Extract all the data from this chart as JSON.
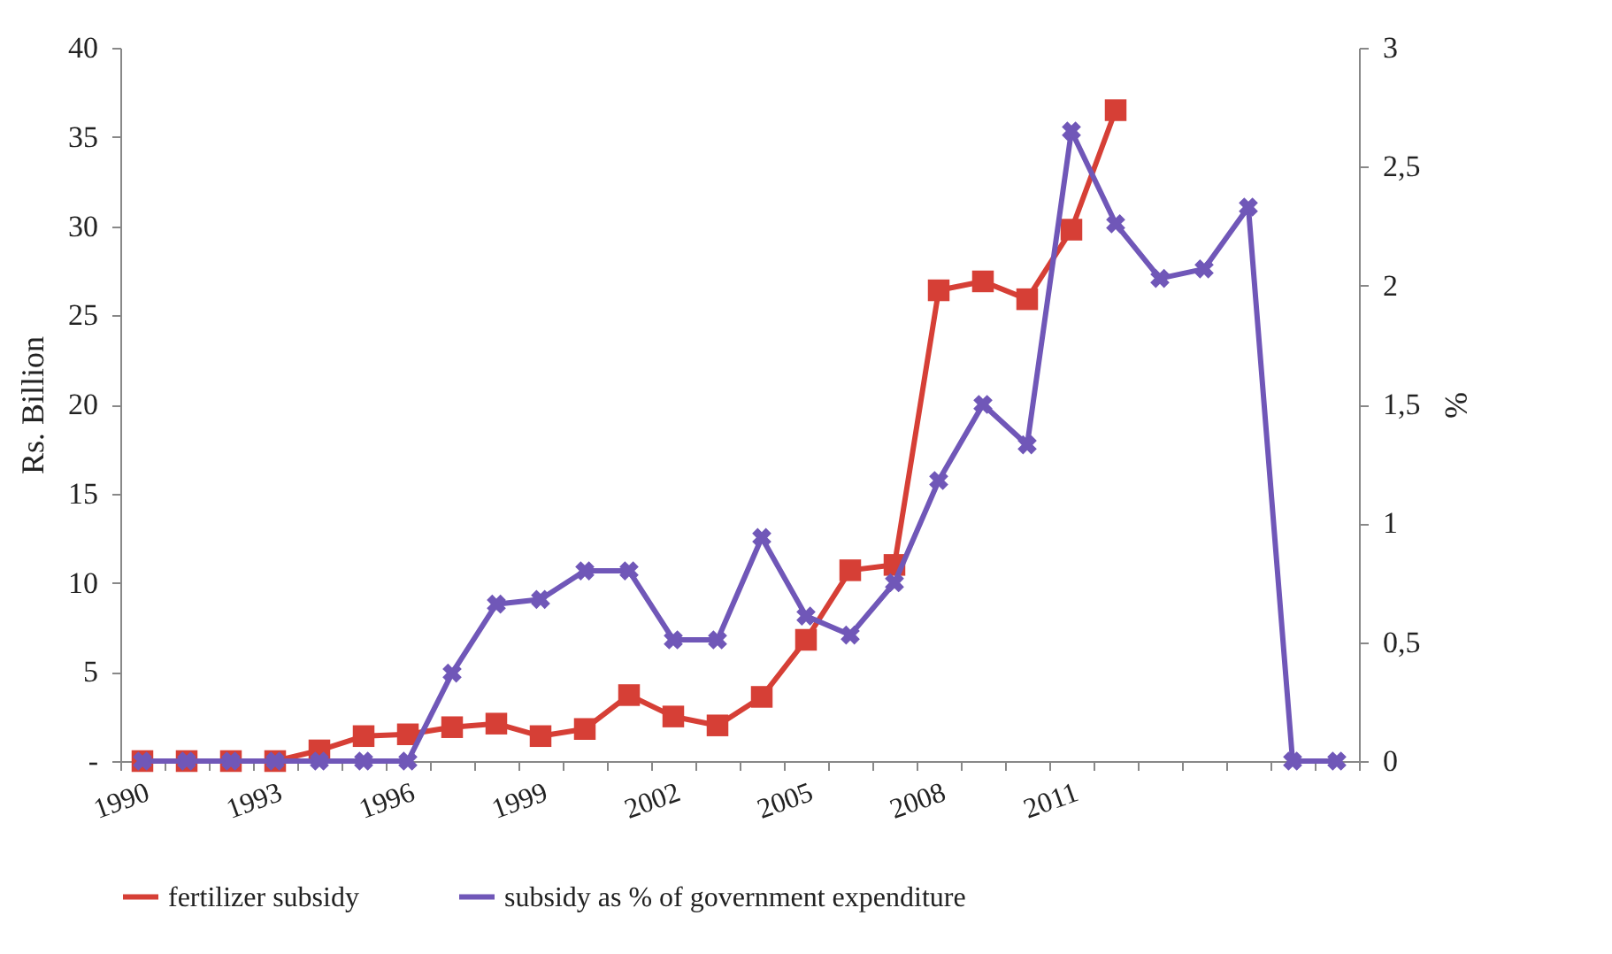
{
  "chart_data": {
    "type": "line",
    "ylabel": "Rs. Billion",
    "y2label": "%",
    "categories": [
      "1990",
      null,
      null,
      "1993",
      null,
      null,
      "1996",
      null,
      null,
      "1999",
      null,
      null,
      "2002",
      null,
      null,
      "2005",
      null,
      null,
      "2008",
      null,
      null,
      "2011",
      null,
      null,
      null,
      null,
      null,
      null
    ],
    "series": [
      {
        "name": "fertilizer subsidy",
        "color": "#d63f36",
        "marker": "square",
        "values": [
          0,
          0,
          0,
          0,
          0.6,
          1.4,
          1.5,
          1.9,
          2.1,
          1.4,
          1.8,
          3.7,
          2.5,
          2.0,
          3.6,
          6.8,
          10.7,
          11.0,
          26.4,
          26.9,
          25.9,
          29.8,
          36.5,
          null,
          null,
          null,
          null,
          null
        ]
      },
      {
        "name": "subsidy as % of government expenditure",
        "color": "#7057b8",
        "marker": "cross",
        "axis": "y2",
        "values": [
          0,
          0,
          0,
          0,
          0,
          0,
          0,
          0.37,
          0.66,
          0.68,
          0.8,
          0.8,
          0.51,
          0.51,
          0.94,
          0.61,
          0.53,
          0.75,
          1.18,
          1.5,
          1.33,
          2.65,
          2.26,
          2.03,
          2.07,
          2.33,
          0,
          0
        ]
      }
    ],
    "ylim": [
      0,
      40
    ],
    "yticks": [
      {
        "value": 0,
        "label": "-"
      },
      5,
      10,
      15,
      20,
      25,
      30,
      35,
      40
    ],
    "y2lim": [
      0,
      3
    ],
    "y2ticks": [
      0,
      {
        "value": 0.5,
        "label": "0,5"
      },
      1,
      {
        "value": 1.5,
        "label": "1,5"
      },
      2,
      {
        "value": 2.5,
        "label": "2,5"
      },
      3
    ],
    "legend": "bottom",
    "grid": false
  }
}
